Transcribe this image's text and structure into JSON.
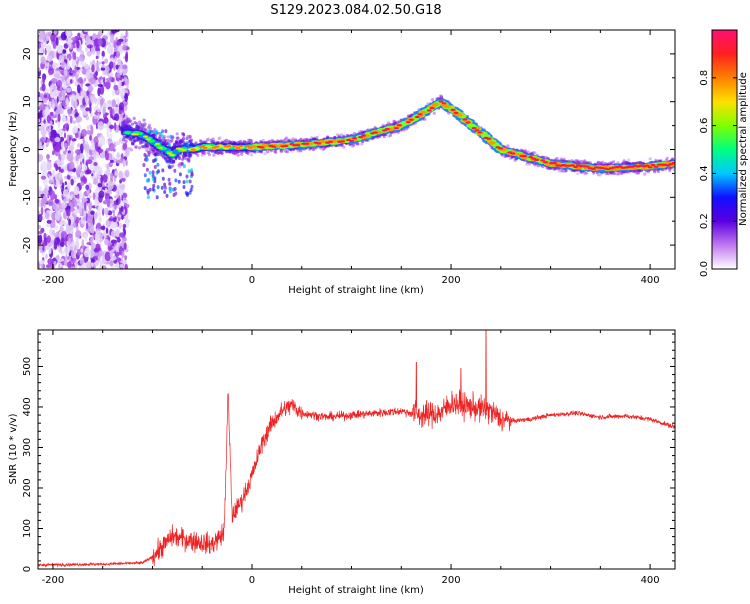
{
  "title": "S129.2023.084.02.50.G18",
  "colors": {
    "line": "#ee2222",
    "colormap": [
      "#e9e3fb",
      "#cfa6f0",
      "#9c33e6",
      "#5a0ad0",
      "#1f1fff",
      "#00c8ff",
      "#00ff60",
      "#c8ff00",
      "#ffd000",
      "#ff6a00",
      "#ff1e1e",
      "#ff1060"
    ]
  },
  "chart_data": [
    {
      "type": "heatmap",
      "title": "S129.2023.084.02.50.G18",
      "xlabel": "Height of straight line (km)",
      "ylabel": "Frequency (Hz)",
      "xlim": [
        -215,
        425
      ],
      "ylim": [
        -25,
        25
      ],
      "xticks": [
        -200,
        0,
        200,
        400
      ],
      "yticks": [
        -20,
        -10,
        0,
        10,
        20
      ],
      "colorbar": {
        "label": "Normalized spectral amplitude",
        "range": [
          0.0,
          1.0
        ],
        "ticks": [
          "0.0",
          "0.2",
          "0.4",
          "0.6",
          "0.8"
        ]
      },
      "ridge": {
        "x": [
          -130,
          -110,
          -95,
          -80,
          -75,
          -65,
          -50,
          0,
          50,
          100,
          150,
          175,
          190,
          210,
          250,
          300,
          350,
          400,
          425
        ],
        "y": [
          4,
          3,
          1,
          -1,
          0,
          0,
          0.5,
          0.5,
          1,
          2,
          5,
          8,
          10,
          7,
          0,
          -3,
          -4,
          -3.5,
          -3
        ]
      },
      "noise_region": {
        "x": [
          -215,
          -125
        ],
        "y": [
          -25,
          25
        ]
      }
    },
    {
      "type": "line",
      "xlabel": "Height of straight line (km)",
      "ylabel": "SNR (10 * v/v)",
      "xlim": [
        -215,
        425
      ],
      "ylim": [
        0,
        590
      ],
      "xticks": [
        -200,
        0,
        200,
        400
      ],
      "yticks": [
        0,
        100,
        200,
        300,
        400,
        500
      ],
      "series": [
        {
          "x": [
            -215,
            -150,
            -110,
            -100,
            -80,
            -60,
            -40,
            -28,
            -24,
            -20,
            -10,
            0,
            10,
            20,
            30,
            40,
            50,
            75,
            100,
            125,
            150,
            170,
            190,
            200,
            220,
            240,
            250,
            260,
            280,
            300,
            325,
            350,
            375,
            400,
            425
          ],
          "y": [
            10,
            12,
            15,
            30,
            80,
            70,
            60,
            90,
            430,
            130,
            170,
            230,
            310,
            360,
            390,
            405,
            385,
            375,
            380,
            385,
            390,
            380,
            385,
            410,
            400,
            390,
            370,
            365,
            370,
            380,
            385,
            375,
            378,
            370,
            350
          ]
        }
      ]
    }
  ]
}
